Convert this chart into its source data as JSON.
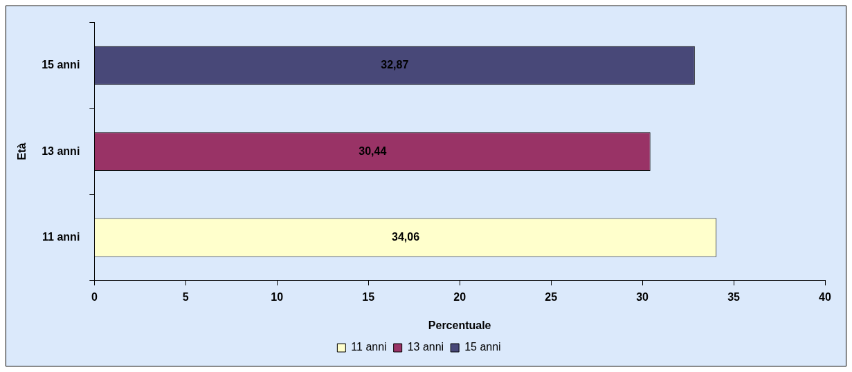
{
  "chart_data": {
    "type": "bar",
    "orientation": "horizontal",
    "xlabel": "Percentuale",
    "ylabel": "Età",
    "categories": [
      "15 anni",
      "13 anni",
      "11 anni"
    ],
    "series": [
      {
        "name": "11 anni",
        "color": "#ffffcc",
        "values": [
          null,
          null,
          34.06
        ],
        "value_labels": [
          null,
          null,
          "34,06"
        ]
      },
      {
        "name": "13 anni",
        "color": "#993366",
        "values": [
          null,
          30.44,
          null
        ],
        "value_labels": [
          null,
          "30,44",
          null
        ]
      },
      {
        "name": "15 anni",
        "color": "#484878",
        "values": [
          32.87,
          null,
          null
        ],
        "value_labels": [
          "32,87",
          null,
          null
        ]
      }
    ],
    "xlim": [
      0,
      40
    ],
    "xticks": [
      0,
      5,
      10,
      15,
      20,
      25,
      30,
      35,
      40
    ],
    "grid": false,
    "legend": "bottom"
  }
}
